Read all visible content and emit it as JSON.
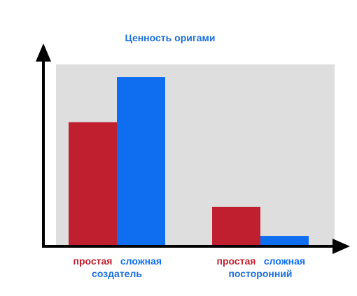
{
  "chart_data": {
    "type": "bar",
    "title": "Ценность оригами",
    "xlabel": "",
    "ylabel": "",
    "ylim": [
      0,
      100
    ],
    "grid": false,
    "legend": "none",
    "groups": [
      {
        "label": "создатель",
        "bars": [
          {
            "name": "простая",
            "value": 68
          },
          {
            "name": "сложная",
            "value": 93
          }
        ]
      },
      {
        "label": "посторонний",
        "bars": [
          {
            "name": "простая",
            "value": 21
          },
          {
            "name": "сложная",
            "value": 5
          }
        ]
      }
    ],
    "colors": {
      "простая": "#bf1f2f",
      "сложная": "#0f6ef0",
      "title": "#1a6fd8",
      "group_label": "#1a6fd8",
      "plot_background": "#dedede",
      "axis": "#000000"
    }
  }
}
